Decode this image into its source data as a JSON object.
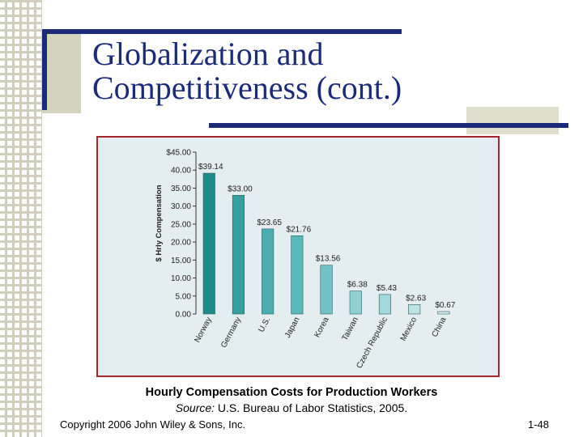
{
  "slide": {
    "title_line1": "Globalization and",
    "title_line2": "Competitiveness (cont.)",
    "caption": "Hourly Compensation Costs for Production Workers",
    "source_label": "Source:",
    "source_text": " U.S. Bureau of Labor Statistics, 2005.",
    "footer_left": "Copyright 2006 John Wiley & Sons, Inc.",
    "footer_right": "1-48"
  },
  "colors": {
    "accent": "#1c2a7a",
    "frame": "#a4262c",
    "bar_gradient": [
      "#1e8a8a",
      "#34a0a0",
      "#4aaeb0",
      "#5ab8ba",
      "#72c2c6",
      "#8fd0d4",
      "#a4d8dc",
      "#bde2e4",
      "#d8eeee"
    ]
  },
  "chart_data": {
    "type": "bar",
    "categories": [
      "Norway",
      "Germany",
      "U.S.",
      "Japan",
      "Korea",
      "Taiwan",
      "Czech Republic",
      "Mexico",
      "China"
    ],
    "values": [
      39.14,
      33.0,
      23.65,
      21.76,
      13.56,
      6.38,
      5.43,
      2.63,
      0.67
    ],
    "value_labels": [
      "$39.14",
      "$33.00",
      "$23.65",
      "$21.76",
      "$13.56",
      "$6.38",
      "$5.43",
      "$2.63",
      "$0.67"
    ],
    "ylabel": "$ Hrly Compensation",
    "ylim": [
      0,
      45
    ],
    "yticks": [
      0,
      5,
      10,
      15,
      20,
      25,
      30,
      35,
      40,
      45
    ],
    "ytick_labels": [
      "0.00",
      "5.00",
      "10.00",
      "15.00",
      "20.00",
      "25.00",
      "30.00",
      "35.00",
      "40.00",
      "$45.00"
    ],
    "grid": false,
    "legend": "none"
  }
}
